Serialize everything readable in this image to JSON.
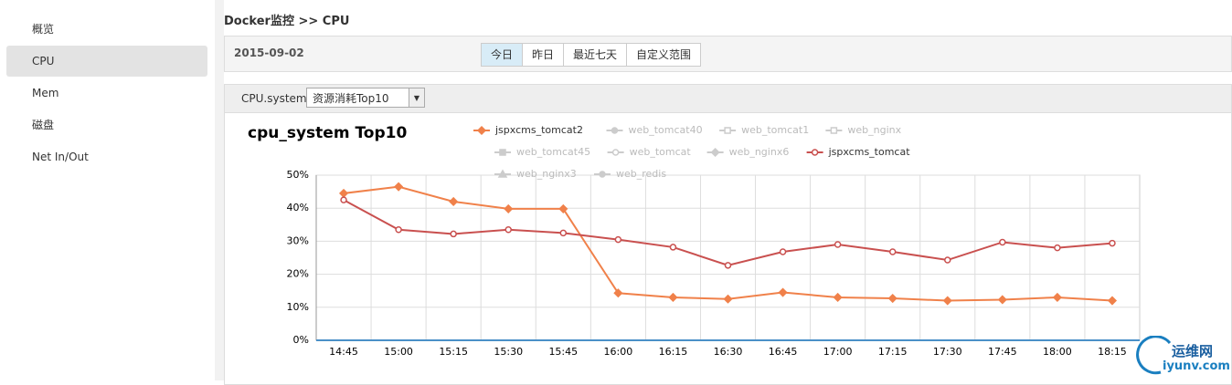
{
  "sidebar": {
    "items": [
      "概览",
      "CPU",
      "Mem",
      "磁盘",
      "Net In/Out"
    ],
    "active": 1
  },
  "breadcrumb": "Docker监控 >> CPU",
  "toolbar": {
    "date": "2015-09-02",
    "buttons": [
      "今日",
      "昨日",
      "最近七天",
      "自定义范围"
    ],
    "active": 0
  },
  "filter": {
    "label": "CPU.system",
    "select": "资源消耗Top10"
  },
  "chart_data": {
    "type": "line",
    "title": "cpu_system Top10",
    "categories": [
      "14:45",
      "15:00",
      "15:15",
      "15:30",
      "15:45",
      "16:00",
      "16:15",
      "16:30",
      "16:45",
      "17:00",
      "17:15",
      "17:30",
      "17:45",
      "18:00",
      "18:15"
    ],
    "ylim": [
      0,
      50
    ],
    "yticks": [
      {
        "value": 0,
        "label": "0%"
      },
      {
        "value": 10,
        "label": "10%"
      },
      {
        "value": 20,
        "label": "20%"
      },
      {
        "value": 30,
        "label": "30%"
      },
      {
        "value": 40,
        "label": "40%"
      },
      {
        "value": 50,
        "label": "50%"
      }
    ],
    "grid": true,
    "series": [
      {
        "name": "jspxcms_tomcat2",
        "color": "#f0814a",
        "marker": "diamond",
        "visible": true,
        "values": [
          44.5,
          46.5,
          42,
          39.8,
          39.8,
          14.3,
          13,
          12.5,
          14.5,
          13,
          12.7,
          12,
          12.3,
          13,
          12
        ]
      },
      {
        "name": "web_tomcat40",
        "color": "#cccccc",
        "marker": "circle",
        "visible": false,
        "values": null
      },
      {
        "name": "web_tomcat1",
        "color": "#cccccc",
        "marker": "square-open",
        "visible": false,
        "values": null
      },
      {
        "name": "web_nginx",
        "color": "#cccccc",
        "marker": "square-open",
        "visible": false,
        "values": null
      },
      {
        "name": "web_tomcat45",
        "color": "#cccccc",
        "marker": "square",
        "visible": false,
        "values": null
      },
      {
        "name": "web_tomcat",
        "color": "#cccccc",
        "marker": "circle-open",
        "visible": false,
        "values": null
      },
      {
        "name": "web_nginx6",
        "color": "#cccccc",
        "marker": "diamond",
        "visible": false,
        "values": null
      },
      {
        "name": "jspxcms_tomcat",
        "color": "#c9504f",
        "marker": "circle-open",
        "visible": true,
        "values": [
          42.5,
          33.5,
          32.2,
          33.5,
          32.5,
          30.5,
          28.2,
          22.7,
          26.8,
          29,
          26.8,
          24.3,
          29.7,
          28,
          29.4
        ]
      },
      {
        "name": "web_nginx3",
        "color": "#cccccc",
        "marker": "triangle",
        "visible": false,
        "values": null
      },
      {
        "name": "web_redis",
        "color": "#cccccc",
        "marker": "circle",
        "visible": false,
        "values": null
      }
    ]
  },
  "watermark": {
    "name": "运维网",
    "url": "iyunv.com"
  }
}
